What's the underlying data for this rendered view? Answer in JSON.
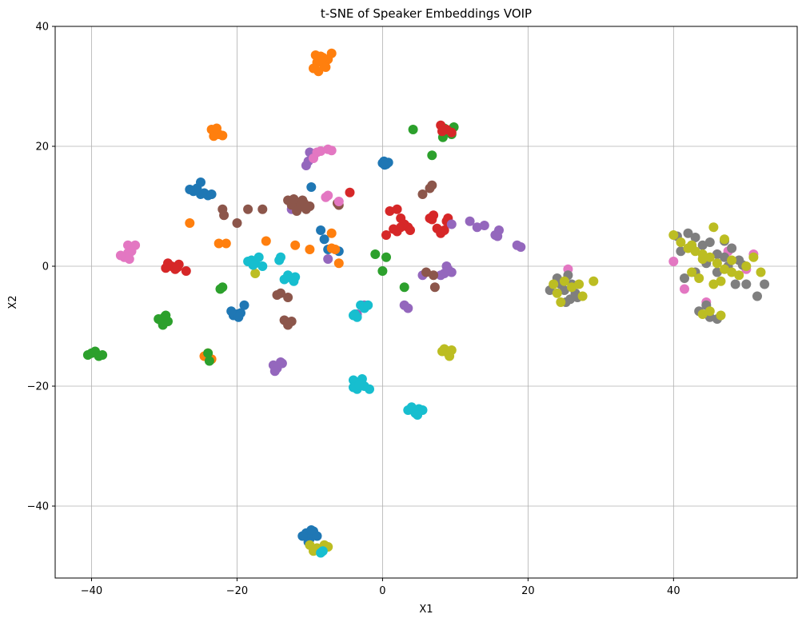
{
  "chart_data": {
    "type": "scatter",
    "title": "t-SNE of Speaker Embeddings VOIP",
    "xlabel": "X1",
    "ylabel": "X2",
    "xlim": [
      -45,
      57
    ],
    "ylim": [
      -52,
      40
    ],
    "xticks": [
      -40,
      -20,
      0,
      20,
      40
    ],
    "yticks": [
      -40,
      -20,
      0,
      20,
      40
    ],
    "xtick_labels": [
      "−40",
      "−20",
      "0",
      "20",
      "40"
    ],
    "ytick_labels": [
      "−40",
      "−20",
      "0",
      "20",
      "40"
    ],
    "grid": true,
    "series": [
      {
        "color": "#1f77b4",
        "points": [
          [
            0.2,
            17.5
          ],
          [
            0.5,
            17.0
          ],
          [
            0.0,
            17.2
          ],
          [
            0.8,
            17.3
          ],
          [
            0.3,
            16.9
          ],
          [
            -26,
            12.5
          ],
          [
            -25,
            12
          ],
          [
            -24,
            11.8
          ],
          [
            -25.5,
            13
          ],
          [
            -26.5,
            12.8
          ],
          [
            -24.5,
            12.2
          ],
          [
            -25,
            14
          ],
          [
            -23.5,
            12
          ],
          [
            -20,
            -8
          ],
          [
            -20.5,
            -8.2
          ],
          [
            -19.5,
            -7.8
          ],
          [
            -19.8,
            -8.5
          ],
          [
            -20.8,
            -7.5
          ],
          [
            -19,
            -6.5
          ],
          [
            -8,
            4.5
          ],
          [
            -8.5,
            6
          ],
          [
            -6,
            2.5
          ],
          [
            -7.5,
            2.8
          ],
          [
            -9.8,
            13.2
          ],
          [
            -10.5,
            -44.5
          ],
          [
            -9.5,
            -44.2
          ],
          [
            -10,
            -45.5
          ],
          [
            -9,
            -45
          ],
          [
            -11,
            -45
          ],
          [
            -10.2,
            -46
          ],
          [
            -9.8,
            -44
          ]
        ]
      },
      {
        "color": "#ff7f0e",
        "points": [
          [
            -9,
            34
          ],
          [
            -8.5,
            35
          ],
          [
            -8,
            33.5
          ],
          [
            -7.5,
            34.5
          ],
          [
            -9.5,
            33
          ],
          [
            -8.8,
            32.5
          ],
          [
            -7,
            35.5
          ],
          [
            -8.2,
            34.8
          ],
          [
            -9.2,
            35.2
          ],
          [
            -7.8,
            33.2
          ],
          [
            -23,
            22.5
          ],
          [
            -22.5,
            22
          ],
          [
            -23.5,
            22.8
          ],
          [
            -22,
            21.8
          ],
          [
            -23.2,
            21.7
          ],
          [
            -22.8,
            23
          ],
          [
            -26.5,
            7.2
          ],
          [
            -22.5,
            3.8
          ],
          [
            -21.5,
            3.8
          ],
          [
            -16,
            4.2
          ],
          [
            -12,
            3.5
          ],
          [
            -10,
            2.8
          ],
          [
            -7,
            3
          ],
          [
            -6.5,
            2.8
          ],
          [
            -6,
            0.5
          ],
          [
            -7,
            5.5
          ],
          [
            -24,
            -14.5
          ],
          [
            -23.5,
            -15.5
          ],
          [
            -24.5,
            -15
          ]
        ]
      },
      {
        "color": "#2ca02c",
        "points": [
          [
            8.5,
            23
          ],
          [
            9.2,
            22.5
          ],
          [
            9.8,
            23.2
          ],
          [
            8.3,
            21.5
          ],
          [
            9.5,
            22
          ],
          [
            4.2,
            22.8
          ],
          [
            6.8,
            18.5
          ],
          [
            -1,
            2
          ],
          [
            0.5,
            1.5
          ],
          [
            0,
            -0.8
          ],
          [
            3,
            -3.5
          ],
          [
            -22,
            -3.5
          ],
          [
            -22.3,
            -3.8
          ],
          [
            -30.5,
            -9
          ],
          [
            -30,
            -8.5
          ],
          [
            -29.5,
            -9.2
          ],
          [
            -30.2,
            -9.8
          ],
          [
            -29.8,
            -8.2
          ],
          [
            -30.8,
            -8.8
          ],
          [
            -40,
            -14.5
          ],
          [
            -39.5,
            -14.2
          ],
          [
            -39,
            -15
          ],
          [
            -40.5,
            -14.8
          ],
          [
            -38.5,
            -14.8
          ],
          [
            -24,
            -14.5
          ],
          [
            -23.8,
            -15.8
          ]
        ]
      },
      {
        "color": "#d62728",
        "points": [
          [
            8,
            23.5
          ],
          [
            8.8,
            22.8
          ],
          [
            9.5,
            22.3
          ],
          [
            8.2,
            22.5
          ],
          [
            -4.5,
            12.3
          ],
          [
            1,
            9.2
          ],
          [
            2,
            9.5
          ],
          [
            3,
            7
          ],
          [
            2.5,
            6.5
          ],
          [
            3.5,
            6.5
          ],
          [
            1.5,
            6.2
          ],
          [
            2.5,
            8
          ],
          [
            3.8,
            6
          ],
          [
            0.5,
            5.2
          ],
          [
            2,
            5.8
          ],
          [
            6.5,
            8
          ],
          [
            7,
            8.5
          ],
          [
            6.8,
            7.8
          ],
          [
            8,
            5.5
          ],
          [
            8.5,
            6
          ],
          [
            7.5,
            6.3
          ],
          [
            9,
            8
          ],
          [
            8.8,
            7.5
          ],
          [
            9.2,
            7.2
          ],
          [
            -29.5,
            0.5
          ],
          [
            -29,
            0
          ],
          [
            -28.5,
            -0.5
          ],
          [
            -28,
            0.3
          ],
          [
            -27,
            -0.8
          ],
          [
            -29.8,
            -0.3
          ],
          [
            -28.2,
            -0.2
          ]
        ]
      },
      {
        "color": "#9467bd",
        "points": [
          [
            -10,
            19
          ],
          [
            -9.5,
            18.2
          ],
          [
            -10.2,
            17.5
          ],
          [
            -10.5,
            16.8
          ],
          [
            -12.5,
            9.5
          ],
          [
            12,
            7.5
          ],
          [
            13,
            6.5
          ],
          [
            14,
            6.8
          ],
          [
            15.8,
            5
          ],
          [
            16,
            6
          ],
          [
            15.5,
            5.2
          ],
          [
            18.5,
            3.5
          ],
          [
            19,
            3.2
          ],
          [
            9.5,
            7
          ],
          [
            8.8,
            0
          ],
          [
            9.5,
            -1
          ],
          [
            8.5,
            -1.2
          ],
          [
            9,
            -0.5
          ],
          [
            8,
            -1.5
          ],
          [
            5.5,
            -1.5
          ],
          [
            3,
            -6.5
          ],
          [
            3.5,
            -7
          ],
          [
            -2.5,
            -6.5
          ],
          [
            -3.5,
            -8
          ],
          [
            -14,
            -16
          ],
          [
            -14.5,
            -17
          ],
          [
            -15,
            -16.5
          ],
          [
            -13.8,
            -16.2
          ],
          [
            -14.8,
            -17.5
          ],
          [
            -7.5,
            1.2
          ]
        ]
      },
      {
        "color": "#8c564b",
        "points": [
          [
            -12,
            10.5
          ],
          [
            -11.5,
            9.8
          ],
          [
            -11,
            11
          ],
          [
            -12.5,
            10.2
          ],
          [
            -11.8,
            9.2
          ],
          [
            -10.8,
            10.5
          ],
          [
            -13,
            11
          ],
          [
            -10.5,
            9.5
          ],
          [
            -12.2,
            11.2
          ],
          [
            -10,
            10
          ],
          [
            -22,
            9.5
          ],
          [
            -21.8,
            8.5
          ],
          [
            -20,
            7.2
          ],
          [
            -18.5,
            9.5
          ],
          [
            -16.5,
            9.5
          ],
          [
            -6,
            10.2
          ],
          [
            -6.2,
            10.5
          ],
          [
            5.5,
            12
          ],
          [
            6.5,
            13
          ],
          [
            6.8,
            13.5
          ],
          [
            6,
            -1
          ],
          [
            7,
            -1.5
          ],
          [
            7.2,
            -3.5
          ],
          [
            -14.5,
            -4.8
          ],
          [
            -14,
            -4.5
          ],
          [
            -13,
            -5.2
          ],
          [
            -13.5,
            -9
          ],
          [
            -13,
            -9.8
          ],
          [
            -12.5,
            -9.2
          ]
        ]
      },
      {
        "color": "#e377c2",
        "points": [
          [
            -35,
            3.5
          ],
          [
            -34.5,
            2.5
          ],
          [
            -34,
            3.5
          ],
          [
            -35.5,
            1.5
          ],
          [
            -34.8,
            1.2
          ],
          [
            -35,
            2.2
          ],
          [
            -36,
            1.8
          ],
          [
            -9,
            19
          ],
          [
            -8.5,
            19.2
          ],
          [
            -7.5,
            19.5
          ],
          [
            -7,
            19.3
          ],
          [
            -9.5,
            18
          ],
          [
            -7.5,
            11.8
          ],
          [
            -7.8,
            11.5
          ],
          [
            -6,
            10.8
          ],
          [
            25.5,
            -0.5
          ],
          [
            40,
            0.8
          ],
          [
            41.5,
            -3.8
          ],
          [
            44.5,
            -6
          ],
          [
            46,
            2
          ],
          [
            48,
            3
          ],
          [
            47.5,
            2.5
          ],
          [
            50,
            -0.5
          ],
          [
            51,
            2
          ]
        ]
      },
      {
        "color": "#7f7f7f",
        "points": [
          [
            24.5,
            -3
          ],
          [
            25,
            -4
          ],
          [
            25.5,
            -1.5
          ],
          [
            26,
            -3
          ],
          [
            25.8,
            -5.5
          ],
          [
            26.5,
            -4.5
          ],
          [
            24,
            -2
          ],
          [
            23,
            -4
          ],
          [
            25.2,
            -6
          ],
          [
            26.8,
            -5.2
          ],
          [
            40.5,
            5
          ],
          [
            41,
            2.5
          ],
          [
            42,
            5.5
          ],
          [
            43,
            4.8
          ],
          [
            44,
            3.5
          ],
          [
            45,
            4
          ],
          [
            46,
            2
          ],
          [
            47,
            1.5
          ],
          [
            48,
            3
          ],
          [
            49,
            1
          ],
          [
            41.5,
            -2
          ],
          [
            43,
            -1
          ],
          [
            44.5,
            0.5
          ],
          [
            46,
            -1
          ],
          [
            47.5,
            0
          ],
          [
            48.5,
            -3
          ],
          [
            50,
            -3
          ],
          [
            51.5,
            -5
          ],
          [
            52.5,
            -3
          ],
          [
            43.5,
            -7.5
          ],
          [
            45,
            -8.5
          ],
          [
            46,
            -8.8
          ],
          [
            44.5,
            -6.5
          ],
          [
            42.5,
            3.5
          ],
          [
            47,
            4.2
          ],
          [
            49.5,
            0.2
          ]
        ]
      },
      {
        "color": "#bcbd22",
        "points": [
          [
            23.5,
            -3
          ],
          [
            24,
            -4.5
          ],
          [
            24.5,
            -6
          ],
          [
            26,
            -3.5
          ],
          [
            27,
            -3
          ],
          [
            27.5,
            -5
          ],
          [
            29,
            -2.5
          ],
          [
            25,
            -2.5
          ],
          [
            8.5,
            -13.8
          ],
          [
            9,
            -14.5
          ],
          [
            9.2,
            -15
          ],
          [
            8.2,
            -14.2
          ],
          [
            9.5,
            -14
          ],
          [
            -17.5,
            -1.2
          ],
          [
            40,
            5.2
          ],
          [
            41,
            4
          ],
          [
            42,
            3
          ],
          [
            43,
            2.5
          ],
          [
            44,
            2
          ],
          [
            45,
            1.5
          ],
          [
            46,
            0.5
          ],
          [
            47,
            -0.5
          ],
          [
            48,
            1
          ],
          [
            49,
            -1.5
          ],
          [
            50,
            0
          ],
          [
            51,
            1.5
          ],
          [
            52,
            -1
          ],
          [
            42.5,
            -1
          ],
          [
            43.5,
            -2
          ],
          [
            45.5,
            -3
          ],
          [
            46.5,
            -2.5
          ],
          [
            48,
            -1
          ],
          [
            44,
            -8
          ],
          [
            45,
            -7.5
          ],
          [
            46.5,
            -8.2
          ],
          [
            45.5,
            6.5
          ],
          [
            44,
            1.2
          ],
          [
            47,
            4.5
          ],
          [
            42.5,
            3.5
          ],
          [
            -10,
            -46.5
          ],
          [
            -9,
            -47
          ],
          [
            -8,
            -46.5
          ],
          [
            -7.5,
            -46.8
          ],
          [
            -9.5,
            -47.5
          ]
        ]
      },
      {
        "color": "#17becf",
        "points": [
          [
            -18.5,
            0.8
          ],
          [
            -18,
            1
          ],
          [
            -17.5,
            0.5
          ],
          [
            -17,
            1.5
          ],
          [
            -16.5,
            0
          ],
          [
            -17.8,
            0.2
          ],
          [
            -14,
            1.5
          ],
          [
            -14.2,
            1
          ],
          [
            -13,
            -1.5
          ],
          [
            -12.5,
            -2
          ],
          [
            -12,
            -1.8
          ],
          [
            -13.5,
            -2.2
          ],
          [
            -12.2,
            -2.5
          ],
          [
            -4,
            -8.2
          ],
          [
            -3.5,
            -8.5
          ],
          [
            -3.8,
            -8
          ],
          [
            -3,
            -6.5
          ],
          [
            -2.5,
            -7
          ],
          [
            -2,
            -6.5
          ],
          [
            -4,
            -19
          ],
          [
            -3,
            -19.5
          ],
          [
            -2.5,
            -20
          ],
          [
            -3.5,
            -20.5
          ],
          [
            -4,
            -20.2
          ],
          [
            -2.8,
            -18.8
          ],
          [
            -1.8,
            -20.5
          ],
          [
            -3.2,
            -19.8
          ],
          [
            4,
            -23.5
          ],
          [
            4.5,
            -24.5
          ],
          [
            5,
            -23.8
          ],
          [
            5.5,
            -24
          ],
          [
            3.5,
            -24
          ],
          [
            4.8,
            -24.8
          ],
          [
            -8.5,
            -47.8
          ],
          [
            -8.2,
            -47.5
          ]
        ]
      }
    ]
  }
}
